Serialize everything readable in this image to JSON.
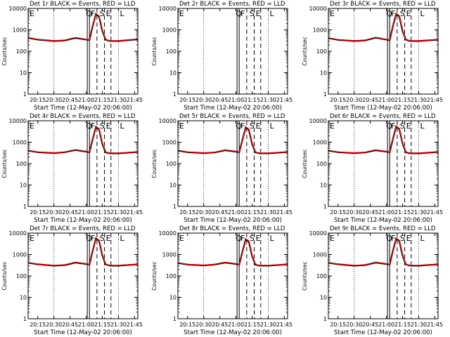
{
  "figure": {
    "ylabel": "Counts/sec",
    "xlabel": "Start Time (12-May-02 20:06:00)",
    "x_ticks": [
      "20:15",
      "20:30",
      "20:45",
      "21:00",
      "21:15",
      "21:30",
      "21:45"
    ],
    "y_ticks": [
      "1",
      "10",
      "100",
      "1000",
      "10000"
    ],
    "interval_letters": [
      "E",
      "Q",
      "F",
      "S",
      "E",
      "L"
    ],
    "colors": {
      "events": "#000000",
      "lld": "#ff0000",
      "axes": "#000000"
    }
  },
  "chart_data": [
    {
      "type": "line",
      "title": "Det 1r BLACK = Events, RED = LLD",
      "xlim": [
        "20:06",
        "21:48"
      ],
      "ylim": [
        1,
        10000
      ],
      "y_scale": "log",
      "grid": "vertical dotted lines at 20:30 and 21:30",
      "markers": {
        "solid": [
          "21:01",
          "21:03"
        ],
        "dashed": [
          "21:10",
          "21:17",
          "21:23"
        ],
        "dotted": [
          "20:30",
          "21:30"
        ]
      },
      "x": [
        "20:06",
        "20:15",
        "20:30",
        "20:40",
        "20:50",
        "21:00",
        "21:03",
        "21:06",
        "21:09",
        "21:12",
        "21:15",
        "21:18",
        "21:22",
        "21:30",
        "21:45",
        "21:48"
      ],
      "series": [
        {
          "name": "Events",
          "values": [
            420,
            350,
            300,
            320,
            420,
            350,
            340,
            1500,
            5500,
            4200,
            900,
            350,
            300,
            300,
            350,
            360
          ]
        },
        {
          "name": "LLD",
          "values": [
            430,
            360,
            310,
            330,
            440,
            360,
            350,
            1600,
            5800,
            4500,
            950,
            360,
            310,
            310,
            360,
            370
          ]
        }
      ]
    },
    {
      "type": "line",
      "title": "Det 2r BLACK = Events, RED = LLD",
      "xlim": [
        "20:06",
        "21:48"
      ],
      "ylim": [
        1,
        10000
      ],
      "y_scale": "log",
      "grid": "vertical dotted lines at 20:30 and 21:30",
      "markers": {
        "solid": [
          "21:01",
          "21:03"
        ],
        "dashed": [
          "21:10",
          "21:17",
          "21:23"
        ],
        "dotted": [
          "20:30",
          "21:30"
        ]
      },
      "x": [],
      "series": []
    },
    {
      "type": "line",
      "title": "Det 3r BLACK = Events, RED = LLD",
      "xlim": [
        "20:06",
        "21:48"
      ],
      "ylim": [
        1,
        10000
      ],
      "y_scale": "log",
      "grid": "vertical dotted lines at 20:30 and 21:30",
      "markers": {
        "solid": [
          "21:01",
          "21:03"
        ],
        "dashed": [
          "21:10",
          "21:17",
          "21:23"
        ],
        "dotted": [
          "20:30",
          "21:30"
        ]
      },
      "x": [
        "20:06",
        "20:15",
        "20:30",
        "20:40",
        "20:50",
        "21:00",
        "21:03",
        "21:06",
        "21:09",
        "21:12",
        "21:15",
        "21:18",
        "21:22",
        "21:30",
        "21:45",
        "21:48"
      ],
      "series": [
        {
          "name": "Events",
          "values": [
            410,
            340,
            300,
            320,
            430,
            350,
            330,
            1500,
            5600,
            4300,
            900,
            350,
            300,
            300,
            340,
            350
          ]
        },
        {
          "name": "LLD",
          "values": [
            420,
            350,
            310,
            330,
            450,
            360,
            340,
            1600,
            5900,
            4600,
            950,
            360,
            310,
            310,
            350,
            360
          ]
        }
      ]
    },
    {
      "type": "line",
      "title": "Det 4r BLACK = Events, RED = LLD",
      "xlim": [
        "20:06",
        "21:48"
      ],
      "ylim": [
        1,
        10000
      ],
      "y_scale": "log",
      "grid": "vertical dotted lines at 20:30 and 21:30",
      "markers": {
        "solid": [
          "21:01",
          "21:03"
        ],
        "dashed": [
          "21:10",
          "21:17",
          "21:23"
        ],
        "dotted": [
          "20:30",
          "21:30"
        ]
      },
      "x": [
        "20:06",
        "20:15",
        "20:30",
        "20:40",
        "20:50",
        "21:00",
        "21:03",
        "21:06",
        "21:09",
        "21:12",
        "21:15",
        "21:18",
        "21:22",
        "21:30",
        "21:45",
        "21:48"
      ],
      "series": [
        {
          "name": "Events",
          "values": [
            400,
            340,
            310,
            340,
            430,
            360,
            340,
            1400,
            5200,
            4000,
            850,
            340,
            300,
            300,
            340,
            350
          ]
        },
        {
          "name": "LLD",
          "values": [
            410,
            350,
            320,
            350,
            450,
            370,
            350,
            1500,
            5500,
            4300,
            900,
            350,
            310,
            310,
            350,
            360
          ]
        }
      ]
    },
    {
      "type": "line",
      "title": "Det 5r BLACK = Events, RED = LLD",
      "xlim": [
        "20:06",
        "21:48"
      ],
      "ylim": [
        1,
        10000
      ],
      "y_scale": "log",
      "grid": "vertical dotted lines at 20:30 and 21:30",
      "markers": {
        "solid": [
          "21:01",
          "21:03"
        ],
        "dashed": [
          "21:10",
          "21:17",
          "21:23"
        ],
        "dotted": [
          "20:30",
          "21:30"
        ]
      },
      "x": [
        "20:06",
        "20:15",
        "20:30",
        "20:40",
        "20:50",
        "21:00",
        "21:03",
        "21:06",
        "21:09",
        "21:12",
        "21:15",
        "21:18",
        "21:22",
        "21:30",
        "21:45",
        "21:48"
      ],
      "series": [
        {
          "name": "Events",
          "values": [
            400,
            340,
            310,
            330,
            420,
            360,
            340,
            1300,
            5000,
            3800,
            850,
            340,
            300,
            300,
            340,
            350
          ]
        },
        {
          "name": "LLD",
          "values": [
            410,
            350,
            320,
            340,
            440,
            370,
            350,
            1400,
            5300,
            4100,
            900,
            350,
            310,
            310,
            350,
            360
          ]
        }
      ]
    },
    {
      "type": "line",
      "title": "Det 6r BLACK = Events, RED = LLD",
      "xlim": [
        "20:06",
        "21:48"
      ],
      "ylim": [
        1,
        10000
      ],
      "y_scale": "log",
      "grid": "vertical dotted lines at 20:30 and 21:30",
      "markers": {
        "solid": [
          "21:01",
          "21:03"
        ],
        "dashed": [
          "21:10",
          "21:17",
          "21:23"
        ],
        "dotted": [
          "20:30",
          "21:30"
        ]
      },
      "x": [
        "20:06",
        "20:15",
        "20:30",
        "20:40",
        "20:50",
        "21:00",
        "21:03",
        "21:06",
        "21:09",
        "21:12",
        "21:15",
        "21:18",
        "21:22",
        "21:30",
        "21:45",
        "21:48"
      ],
      "series": [
        {
          "name": "Events",
          "values": [
            400,
            340,
            310,
            330,
            420,
            360,
            340,
            1400,
            5400,
            4100,
            880,
            340,
            300,
            300,
            340,
            350
          ]
        },
        {
          "name": "LLD",
          "values": [
            410,
            350,
            320,
            340,
            440,
            370,
            350,
            1500,
            5700,
            4400,
            930,
            350,
            310,
            310,
            350,
            360
          ]
        }
      ]
    },
    {
      "type": "line",
      "title": "Det 7r BLACK = Events, RED = LLD",
      "xlim": [
        "20:06",
        "21:48"
      ],
      "ylim": [
        1,
        10000
      ],
      "y_scale": "log",
      "grid": "vertical dotted lines at 20:30 and 21:30",
      "markers": {
        "solid": [
          "21:01",
          "21:03"
        ],
        "dashed": [
          "21:10",
          "21:17",
          "21:23"
        ],
        "dotted": [
          "20:30",
          "21:30"
        ]
      },
      "x": [
        "20:06",
        "20:15",
        "20:30",
        "20:40",
        "20:50",
        "21:00",
        "21:03",
        "21:06",
        "21:09",
        "21:12",
        "21:15",
        "21:18",
        "21:22",
        "21:30",
        "21:45",
        "21:48"
      ],
      "series": [
        {
          "name": "Events",
          "values": [
            410,
            350,
            300,
            320,
            420,
            360,
            340,
            1500,
            5700,
            4400,
            920,
            350,
            300,
            300,
            340,
            350
          ]
        },
        {
          "name": "LLD",
          "values": [
            420,
            360,
            310,
            330,
            440,
            370,
            350,
            1600,
            6000,
            4700,
            970,
            360,
            310,
            310,
            350,
            360
          ]
        }
      ]
    },
    {
      "type": "line",
      "title": "Det 8r BLACK = Events, RED = LLD",
      "xlim": [
        "20:06",
        "21:48"
      ],
      "ylim": [
        1,
        10000
      ],
      "y_scale": "log",
      "grid": "vertical dotted lines at 20:30 and 21:30",
      "markers": {
        "solid": [
          "21:01",
          "21:03"
        ],
        "dashed": [
          "21:10",
          "21:17",
          "21:23"
        ],
        "dotted": [
          "20:30",
          "21:30"
        ]
      },
      "x": [
        "20:06",
        "20:15",
        "20:30",
        "20:40",
        "20:50",
        "21:00",
        "21:03",
        "21:06",
        "21:09",
        "21:12",
        "21:15",
        "21:18",
        "21:22",
        "21:30",
        "21:45",
        "21:48"
      ],
      "series": [
        {
          "name": "Events",
          "values": [
            400,
            340,
            310,
            340,
            420,
            360,
            340,
            1400,
            5200,
            4000,
            860,
            340,
            300,
            300,
            340,
            350
          ]
        },
        {
          "name": "LLD",
          "values": [
            410,
            350,
            320,
            350,
            440,
            370,
            350,
            1500,
            5500,
            4300,
            910,
            350,
            310,
            310,
            350,
            360
          ]
        }
      ]
    },
    {
      "type": "line",
      "title": "Det 9r BLACK = Events, RED = LLD",
      "xlim": [
        "20:06",
        "21:48"
      ],
      "ylim": [
        1,
        10000
      ],
      "y_scale": "log",
      "grid": "vertical dotted lines at 20:30 and 21:30",
      "markers": {
        "solid": [
          "21:01",
          "21:03"
        ],
        "dashed": [
          "21:10",
          "21:17",
          "21:23"
        ],
        "dotted": [
          "20:30",
          "21:30"
        ]
      },
      "x": [
        "20:06",
        "20:15",
        "20:30",
        "20:40",
        "20:50",
        "21:00",
        "21:03",
        "21:06",
        "21:09",
        "21:12",
        "21:15",
        "21:18",
        "21:22",
        "21:30",
        "21:45",
        "21:48"
      ],
      "series": [
        {
          "name": "Events",
          "values": [
            410,
            350,
            300,
            320,
            420,
            360,
            340,
            1500,
            5600,
            4300,
            900,
            350,
            300,
            300,
            340,
            350
          ]
        },
        {
          "name": "LLD",
          "values": [
            420,
            360,
            310,
            330,
            440,
            370,
            350,
            1600,
            5900,
            4600,
            950,
            360,
            310,
            310,
            350,
            360
          ]
        }
      ]
    }
  ]
}
